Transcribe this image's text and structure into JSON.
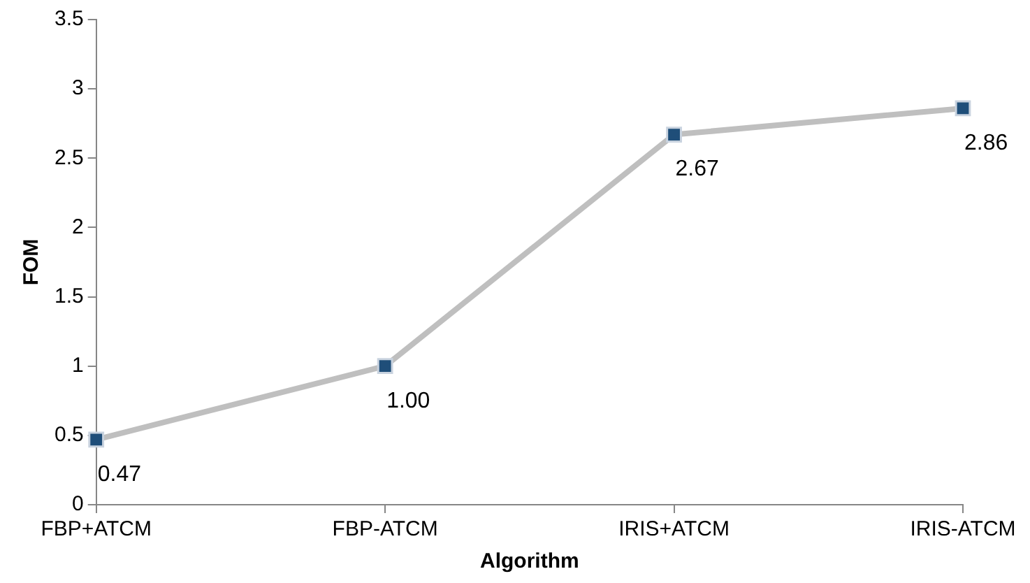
{
  "chart_data": {
    "type": "line",
    "xlabel": "Algorithm",
    "ylabel": "FOM",
    "categories": [
      "FBP+ATCM",
      "FBP-ATCM",
      "IRIS+ATCM",
      "IRIS-ATCM"
    ],
    "series": [
      {
        "color": "#bfbfbf",
        "values": [
          0.47,
          1.0,
          2.67,
          2.86
        ]
      }
    ],
    "value_labels": [
      "0.47",
      "1.00",
      "2.67",
      "2.86"
    ],
    "ylim": [
      0,
      3.5
    ],
    "yticks": [
      0,
      0.5,
      1,
      1.5,
      2,
      2.5,
      3,
      3.5
    ],
    "grid": false,
    "legend": false,
    "marker": "square",
    "line_style": "solid"
  }
}
